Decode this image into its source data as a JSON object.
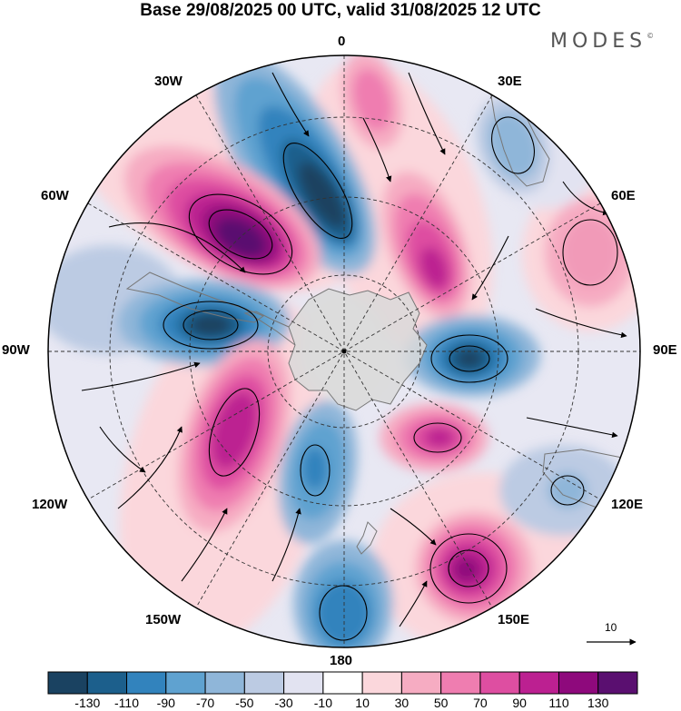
{
  "title": "Base 29/08/2025 00 UTC, valid 31/08/2025 12 UTC",
  "brand": "MODES",
  "brand_mark": "©",
  "longitude_labels": {
    "top": "0",
    "top_right_30": "30E",
    "right_60": "60E",
    "right_90": "90E",
    "right_120": "120E",
    "bottom_right_150": "150E",
    "bottom": "180",
    "bottom_left_150": "150W",
    "left_120": "120W",
    "left_90": "90W",
    "left_60": "60W",
    "top_left_30": "30W"
  },
  "reference_vector_label": "10",
  "colorbar": {
    "labels": [
      "-130",
      "-110",
      "-90",
      "-70",
      "-50",
      "-30",
      "-10",
      "10",
      "30",
      "50",
      "70",
      "90",
      "110",
      "130"
    ],
    "colors": [
      "#1a4261",
      "#1c5f8c",
      "#3283bd",
      "#5fa2d0",
      "#8fb6d9",
      "#bccbe3",
      "#e2e3f1",
      "#ffffff",
      "#fbd7dc",
      "#f6acc2",
      "#ef7db0",
      "#de4ea1",
      "#bc2091",
      "#8e097c",
      "#5a0f70"
    ]
  },
  "map_data": {
    "projection": "south polar stereographic",
    "field": "shaded anomaly with wind vectors",
    "anomalies": [
      {
        "name": "neg-30W",
        "value": -130
      },
      {
        "name": "pos-60W",
        "value": 130
      },
      {
        "name": "neg-90W",
        "value": -110
      },
      {
        "name": "pos-120W",
        "value": 110
      },
      {
        "name": "neg-150W",
        "value": -90
      },
      {
        "name": "neg-180",
        "value": -90
      },
      {
        "name": "pos-0",
        "value": 70
      },
      {
        "name": "pos-20E",
        "value": 110
      },
      {
        "name": "neg-30E",
        "value": -50
      },
      {
        "name": "pos-60E",
        "value": 50
      },
      {
        "name": "neg-90E",
        "value": -110
      },
      {
        "name": "pos-130E",
        "value": 110
      },
      {
        "name": "neg-120E",
        "value": -50
      },
      {
        "name": "pos-150E",
        "value": 130
      }
    ]
  }
}
